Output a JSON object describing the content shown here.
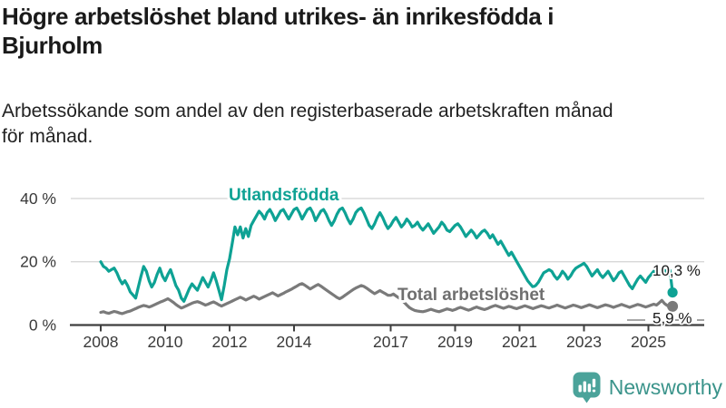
{
  "header": {
    "title_lines": [
      "Högre arbetslöshet bland utrikes- än inrikesfödda i",
      "Bjurholm"
    ],
    "subtitle_lines": [
      "Arbetssökande som andel av den registerbaserade arbetskraften månad",
      "för månad."
    ]
  },
  "footer": {
    "brand": "Newsworthy"
  },
  "colors": {
    "series_utlandsfodda": "#0ea294",
    "series_total": "#7a7a7a",
    "brand_teal": "#3b948b",
    "icon_teal": "#4ba39a",
    "gridline": "#d7d7d7",
    "axis": "#3f3f3f"
  },
  "chart_data": {
    "type": "line",
    "unit": "%",
    "x_interval": "monthly",
    "x_start_year": 2008,
    "x_ticks": [
      2008,
      2010,
      2012,
      2014,
      2017,
      2019,
      2021,
      2023,
      2025
    ],
    "y_ticks": [
      {
        "value": 0,
        "label": "0 %"
      },
      {
        "value": 20,
        "label": "20 %"
      },
      {
        "value": 40,
        "label": "40 %"
      }
    ],
    "ylim": [
      0,
      42
    ],
    "grid": true,
    "series": [
      {
        "name": "Utlandsfödda",
        "color": "#0ea294",
        "end_label": "10,3 %",
        "end_value": 10.3,
        "values": [
          20.0,
          18.5,
          18.0,
          17.0,
          17.5,
          18.0,
          16.5,
          14.5,
          13.0,
          14.0,
          12.5,
          10.5,
          9.5,
          8.5,
          12.0,
          15.5,
          18.5,
          17.0,
          14.0,
          12.0,
          13.5,
          16.0,
          18.0,
          15.5,
          14.0,
          16.0,
          17.5,
          15.0,
          12.5,
          11.0,
          8.5,
          7.5,
          9.5,
          11.5,
          13.0,
          12.0,
          11.0,
          13.0,
          15.0,
          13.5,
          12.0,
          14.0,
          16.5,
          14.0,
          11.0,
          8.0,
          12.5,
          17.5,
          21.0,
          26.0,
          31.0,
          28.5,
          31.0,
          27.5,
          30.5,
          28.0,
          31.5,
          33.0,
          34.5,
          36.0,
          35.0,
          33.5,
          35.5,
          36.5,
          35.0,
          33.0,
          34.5,
          36.0,
          36.5,
          35.0,
          33.5,
          35.0,
          36.5,
          37.0,
          35.5,
          33.5,
          35.0,
          36.5,
          37.0,
          35.5,
          33.0,
          34.5,
          36.0,
          36.5,
          35.0,
          33.0,
          31.5,
          33.0,
          35.0,
          36.5,
          37.0,
          35.5,
          33.5,
          32.0,
          33.5,
          35.5,
          36.5,
          37.0,
          35.5,
          33.5,
          31.5,
          30.5,
          32.0,
          34.0,
          35.5,
          34.0,
          32.0,
          30.5,
          31.5,
          33.0,
          34.0,
          32.5,
          31.0,
          32.0,
          33.5,
          32.5,
          31.0,
          31.5,
          32.5,
          31.0,
          30.0,
          31.0,
          32.0,
          30.5,
          29.0,
          30.0,
          31.0,
          32.5,
          31.5,
          30.0,
          29.5,
          30.5,
          31.5,
          32.0,
          31.0,
          29.5,
          28.0,
          29.0,
          30.0,
          29.0,
          27.5,
          28.5,
          29.5,
          30.0,
          29.0,
          27.5,
          28.5,
          27.0,
          25.5,
          26.5,
          25.0,
          23.5,
          22.0,
          23.0,
          21.5,
          20.0,
          18.5,
          17.0,
          15.5,
          14.0,
          13.0,
          12.0,
          12.5,
          13.5,
          15.0,
          16.5,
          17.0,
          17.5,
          17.0,
          15.5,
          14.5,
          15.5,
          17.0,
          16.0,
          14.5,
          15.5,
          17.0,
          18.0,
          18.5,
          19.0,
          19.5,
          18.5,
          17.0,
          15.5,
          16.5,
          17.5,
          16.0,
          15.0,
          16.0,
          17.0,
          15.5,
          14.0,
          15.0,
          16.5,
          17.0,
          15.5,
          14.0,
          12.5,
          11.5,
          13.0,
          14.5,
          15.5,
          14.5,
          13.5,
          15.0,
          16.0,
          17.0,
          16.0,
          15.5,
          16.5,
          17.3,
          16.8,
          17.3,
          10.3
        ]
      },
      {
        "name": "Total arbetslöshet",
        "color": "#7a7a7a",
        "end_label": "5,9 %",
        "end_value": 5.9,
        "values": [
          4.0,
          4.2,
          3.9,
          3.7,
          4.0,
          4.3,
          4.1,
          3.8,
          3.6,
          3.9,
          4.2,
          4.4,
          4.8,
          5.2,
          5.6,
          5.9,
          6.2,
          6.0,
          5.7,
          6.0,
          6.4,
          6.8,
          7.2,
          7.5,
          7.9,
          8.3,
          7.8,
          7.2,
          6.5,
          5.9,
          5.4,
          5.7,
          6.1,
          6.5,
          6.9,
          7.2,
          7.4,
          7.1,
          6.7,
          6.3,
          6.6,
          7.0,
          7.3,
          6.9,
          6.4,
          6.0,
          6.4,
          6.8,
          7.2,
          7.6,
          8.0,
          8.4,
          8.8,
          8.4,
          7.9,
          8.3,
          8.7,
          9.1,
          8.7,
          8.2,
          8.6,
          9.0,
          9.4,
          9.8,
          10.2,
          9.7,
          9.2,
          9.6,
          10.0,
          10.5,
          10.9,
          11.3,
          11.8,
          12.3,
          12.8,
          13.1,
          12.6,
          12.0,
          11.4,
          11.9,
          12.4,
          12.8,
          12.3,
          11.7,
          11.1,
          10.5,
          9.9,
          9.3,
          8.7,
          8.3,
          8.8,
          9.4,
          10.0,
          10.6,
          11.2,
          11.7,
          12.1,
          12.5,
          12.2,
          11.7,
          11.1,
          10.5,
          9.9,
          10.4,
          10.9,
          10.4,
          9.9,
          9.4,
          9.4,
          9.8,
          9.2,
          8.6,
          8.0,
          7.2,
          6.3,
          5.5,
          5.0,
          4.6,
          4.4,
          4.3,
          4.2,
          4.4,
          4.7,
          5.0,
          4.7,
          4.4,
          4.2,
          4.5,
          4.8,
          5.1,
          4.9,
          4.6,
          4.9,
          5.3,
          5.6,
          5.3,
          5.0,
          4.7,
          5.0,
          5.4,
          5.7,
          5.4,
          5.1,
          4.9,
          5.2,
          5.6,
          5.9,
          6.2,
          5.9,
          5.6,
          5.3,
          5.6,
          5.9,
          5.7,
          5.4,
          5.2,
          5.5,
          5.8,
          6.1,
          5.8,
          5.5,
          5.2,
          5.5,
          5.8,
          6.1,
          5.9,
          5.6,
          5.4,
          5.7,
          6.0,
          6.3,
          6.0,
          5.7,
          5.4,
          5.7,
          6.0,
          6.3,
          6.1,
          5.8,
          5.5,
          5.8,
          6.1,
          6.4,
          6.1,
          5.8,
          5.5,
          5.8,
          6.1,
          6.4,
          6.2,
          5.9,
          5.6,
          5.9,
          6.2,
          6.5,
          6.2,
          5.9,
          5.6,
          5.9,
          6.2,
          6.5,
          6.3,
          6.0,
          5.7,
          6.0,
          6.3,
          6.6,
          6.3,
          7.0,
          7.8,
          6.8,
          6.2,
          5.8,
          5.9
        ]
      }
    ]
  }
}
